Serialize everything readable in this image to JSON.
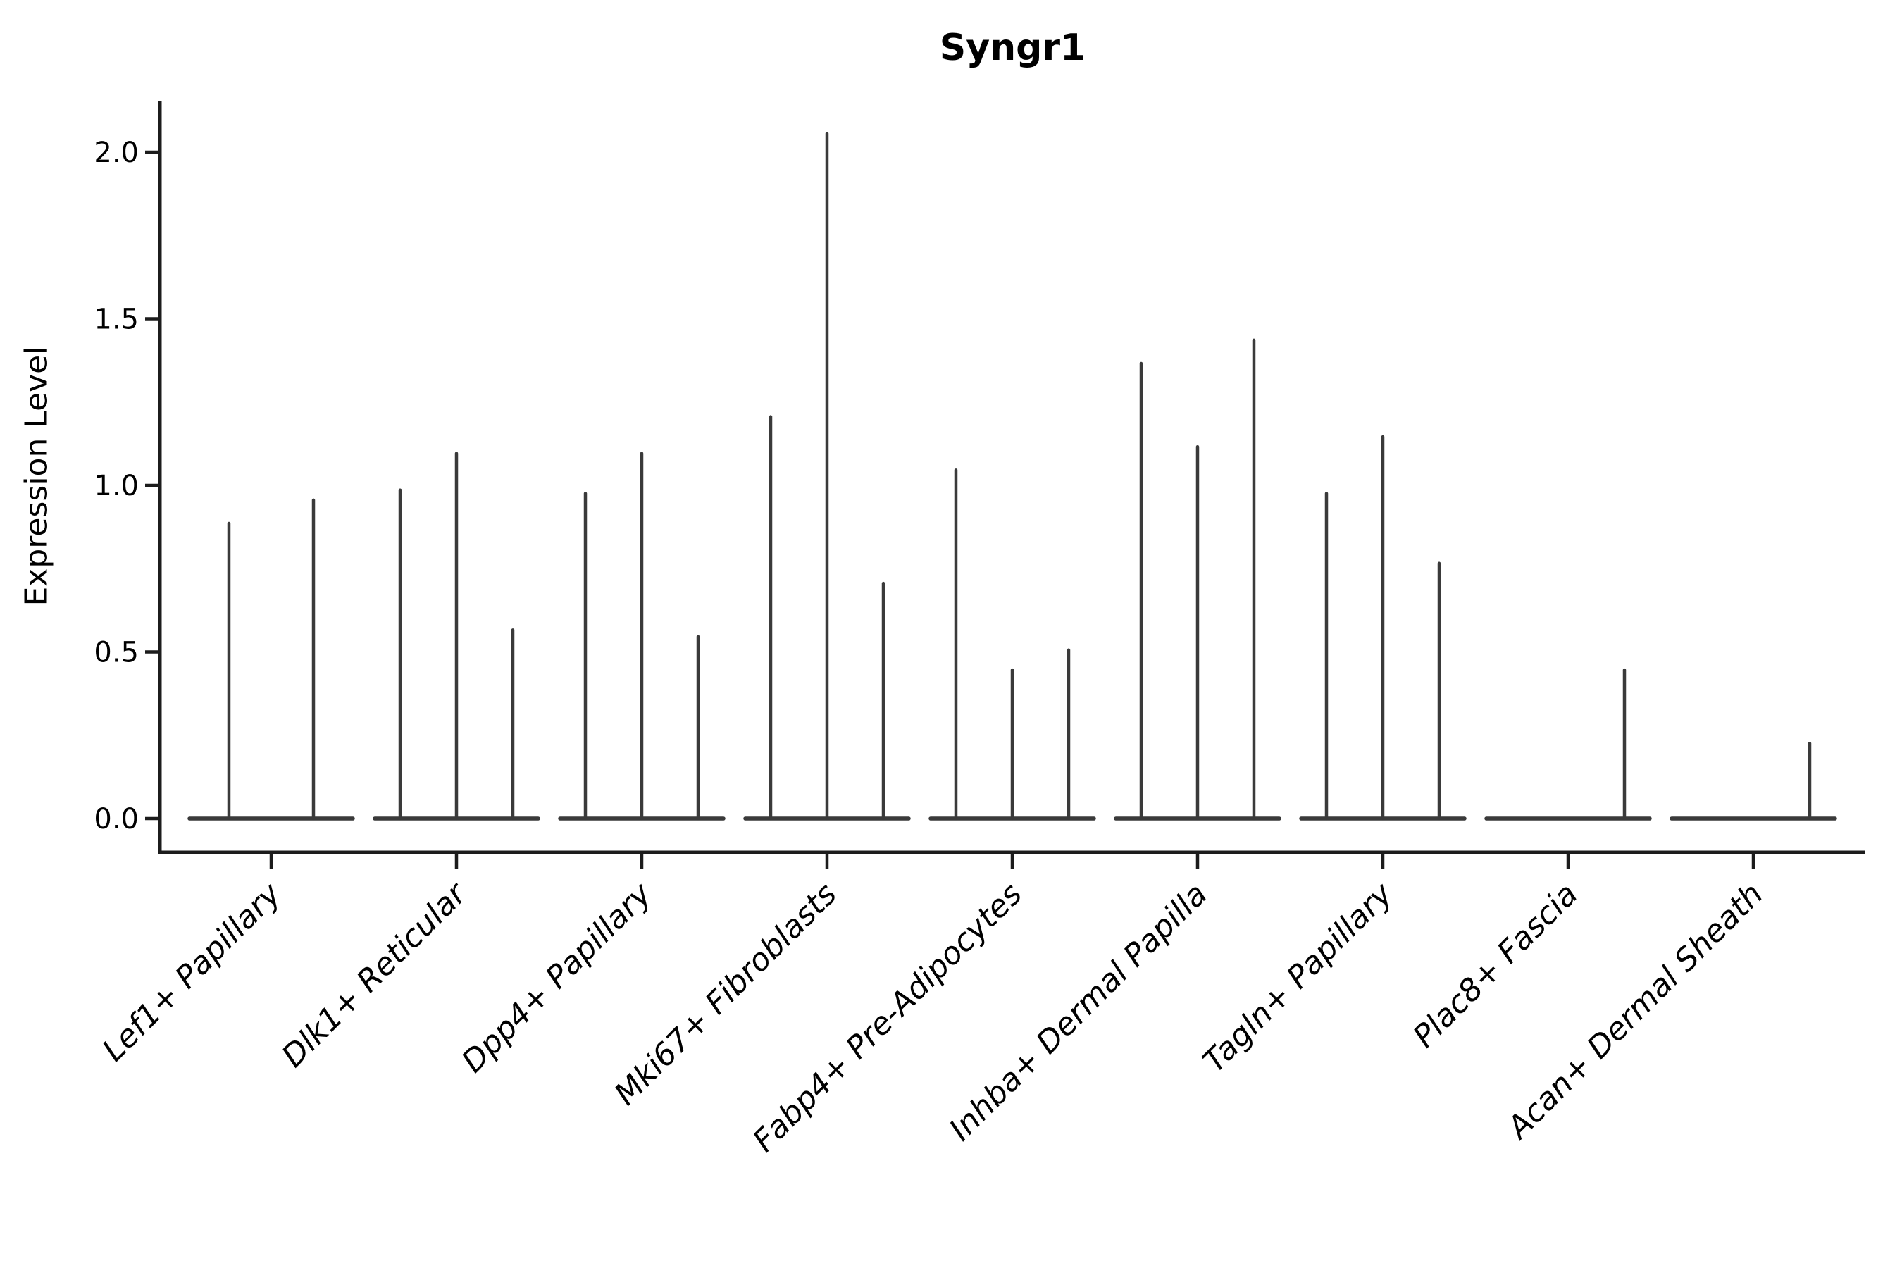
{
  "figure": {
    "title": "Syngr1",
    "ylabel": "Expression Level"
  },
  "chart_data": {
    "type": "violin",
    "title": "Syngr1",
    "xlabel": "",
    "ylabel": "Expression Level",
    "ytick_labels": [
      "0.0",
      "0.5",
      "1.0",
      "1.5",
      "2.0"
    ],
    "ytick_values": [
      0.0,
      0.5,
      1.0,
      1.5,
      2.0
    ],
    "ylim": [
      -0.1,
      2.15
    ],
    "grid": false,
    "legend_position": "none",
    "x_tick_rotation_deg": 45,
    "categories": [
      "Lef1+ Papillary",
      "Dlk1+ Reticular",
      "Dpp4+ Papillary",
      "Mki67+ Fibroblasts",
      "Fabp4+ Pre-Adipocytes",
      "Inhba+ Dermal Papilla",
      "Tagln+ Papillary",
      "Plac8+ Fascia",
      "Acan+ Dermal Sheath"
    ],
    "violins_max_expression": [
      [
        0.89,
        0.96
      ],
      [
        0.99,
        1.1,
        0.57
      ],
      [
        0.98,
        1.1,
        0.55
      ],
      [
        1.21,
        2.06,
        0.71
      ],
      [
        1.05,
        0.45,
        0.51
      ],
      [
        1.37,
        1.12,
        1.44
      ],
      [
        0.98,
        1.15,
        0.77
      ],
      [
        0.0,
        0.0,
        0.45
      ],
      [
        0.0,
        0.0,
        0.23
      ]
    ],
    "violin_line_color": "#3a3a3a",
    "axis_color": "#1c1c1c",
    "text_color": "#000000",
    "background_color": "#ffffff"
  }
}
